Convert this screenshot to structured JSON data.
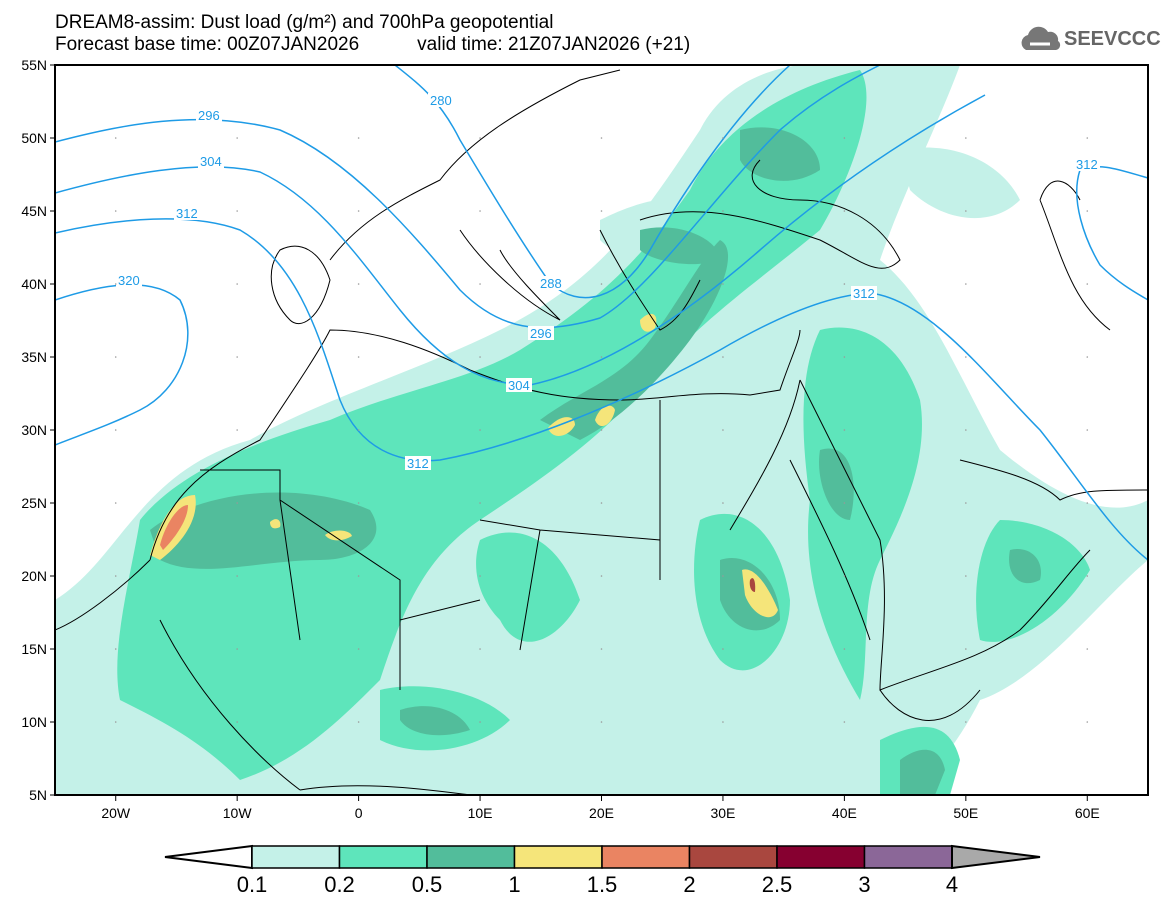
{
  "title": {
    "line1": "DREAM8-assim: Dust load (g/m²) and 700hPa geopotential",
    "base_time": "Forecast base time: 00Z07JAN2026",
    "valid_time": "valid time: 21Z07JAN2026 (+21)"
  },
  "logo": {
    "text": "SEEVCCC",
    "icon": "cloud-icon"
  },
  "axes": {
    "lat_labels": [
      "55N",
      "50N",
      "45N",
      "40N",
      "35N",
      "30N",
      "25N",
      "20N",
      "15N",
      "10N",
      "5N"
    ],
    "lon_labels": [
      "20W",
      "10W",
      "0",
      "10E",
      "20E",
      "30E",
      "40E",
      "50E",
      "60E"
    ]
  },
  "contours": {
    "labels": [
      "280",
      "296",
      "304",
      "312",
      "320",
      "288",
      "296",
      "304",
      "312",
      "312",
      "312"
    ],
    "color": "#1e9be6"
  },
  "colorbar": {
    "labels": [
      "0.1",
      "0.2",
      "0.5",
      "1",
      "1.5",
      "2",
      "2.5",
      "3",
      "4"
    ],
    "colors": [
      "#c4f1e8",
      "#5ee5bb",
      "#52bd9b",
      "#f5e57a",
      "#ea8462",
      "#a9473f",
      "#860030",
      "#8b6798",
      "#a9a9a9"
    ]
  }
}
